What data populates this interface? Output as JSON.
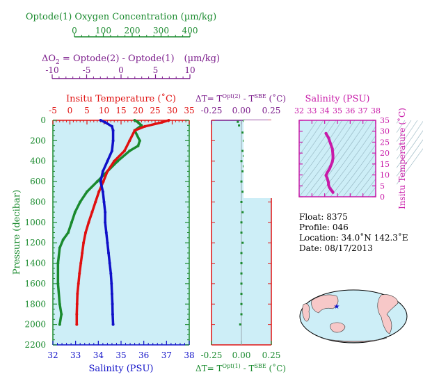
{
  "oxygen_axis": {
    "title": "Optode(1) Oxygen Concentration (µm/kg)",
    "ticks": [
      "0",
      "100",
      "200",
      "300",
      "400"
    ],
    "range": [
      0,
      400
    ]
  },
  "delta_o2_axis": {
    "title": "ΔO",
    "subscript": "2",
    "title_rest": " = Optode(2) - Optode(1)",
    "units": "(µm/kg)",
    "ticks": [
      "-10",
      "-5",
      "0",
      "5",
      "10"
    ],
    "range": [
      -10,
      10
    ]
  },
  "colors": {
    "oxygen": "#1a8a2e",
    "temperature": "#e01010",
    "salinity": "#1010c8",
    "purple": "#7a1a8a",
    "magenta": "#c81aa8",
    "panel_bg": "#cdeef7",
    "land": "#f7c8c8",
    "ocean": "#cdeef7"
  },
  "main_panel": {
    "top_title": "Insitu Temperature (˚C)",
    "top_ticks": [
      "-5",
      "0",
      "5",
      "10",
      "15",
      "20",
      "25",
      "30",
      "35"
    ],
    "y_title": "Pressure (decibar)",
    "y_ticks": [
      "0",
      "200",
      "400",
      "600",
      "800",
      "1000",
      "1200",
      "1400",
      "1600",
      "1800",
      "2000",
      "2200"
    ],
    "bottom_title": "Salinity (PSU)",
    "bottom_ticks": [
      "32",
      "33",
      "34",
      "35",
      "36",
      "37",
      "38"
    ]
  },
  "dt_panel": {
    "top_title_prefix": "ΔT= T",
    "top_sup1": "Opt(2)",
    "top_mid": " - T",
    "top_sup2": "SBE",
    "top_units": " (˚C)",
    "bottom_title_prefix": "ΔT= T",
    "bottom_sup1": "Opt(1)",
    "bottom_mid": " - T",
    "bottom_sup2": "SBE",
    "bottom_units": " (˚C)",
    "top_ticks": [
      "-0.25",
      "0.00",
      "0.25"
    ],
    "bottom_ticks": [
      "-0.25",
      "0.00",
      "0.25"
    ]
  },
  "ts_panel": {
    "top_title": "Salinity (PSU)",
    "top_ticks": [
      "32",
      "33",
      "34",
      "35",
      "36",
      "37",
      "38"
    ],
    "right_title": "Insitu Temperature (˚C)",
    "right_ticks": [
      "0",
      "5",
      "10",
      "15",
      "20",
      "25",
      "30",
      "35"
    ]
  },
  "info": {
    "float": "Float:  8375",
    "profile": "Profile:  046",
    "location": "Location:  34.0˚N  142.3˚E",
    "date": "Date:  08/17/2013"
  },
  "chart_data": [
    {
      "type": "line",
      "name": "oxygen",
      "x_axis": "Optode(1) Oxygen Concentration (µm/kg)",
      "y_axis": "Pressure (decibar)",
      "xlim": [
        0,
        400
      ],
      "ylim": [
        2200,
        0
      ],
      "points": [
        [
          240,
          0
        ],
        [
          250,
          20
        ],
        [
          260,
          50
        ],
        [
          240,
          100
        ],
        [
          255,
          200
        ],
        [
          250,
          250
        ],
        [
          225,
          300
        ],
        [
          190,
          400
        ],
        [
          160,
          500
        ],
        [
          130,
          600
        ],
        [
          100,
          700
        ],
        [
          80,
          800
        ],
        [
          65,
          900
        ],
        [
          55,
          1000
        ],
        [
          45,
          1100
        ],
        [
          30,
          1170
        ],
        [
          20,
          1250
        ],
        [
          15,
          1400
        ],
        [
          15,
          1600
        ],
        [
          20,
          1800
        ],
        [
          25,
          1900
        ],
        [
          20,
          2000
        ]
      ]
    },
    {
      "type": "line",
      "name": "temperature",
      "x_axis": "Insitu Temperature (˚C)",
      "y_axis": "Pressure (decibar)",
      "xlim": [
        -5,
        35
      ],
      "ylim": [
        2200,
        0
      ],
      "points": [
        [
          29,
          0
        ],
        [
          27,
          20
        ],
        [
          22,
          60
        ],
        [
          19,
          100
        ],
        [
          17.5,
          200
        ],
        [
          16,
          300
        ],
        [
          13,
          400
        ],
        [
          11,
          500
        ],
        [
          9.8,
          600
        ],
        [
          8.5,
          700
        ],
        [
          7.5,
          800
        ],
        [
          6.5,
          900
        ],
        [
          5.5,
          1000
        ],
        [
          4.6,
          1100
        ],
        [
          4,
          1200
        ],
        [
          3.6,
          1300
        ],
        [
          3.2,
          1400
        ],
        [
          2.8,
          1500
        ],
        [
          2.5,
          1600
        ],
        [
          2.2,
          1700
        ],
        [
          2.1,
          1800
        ],
        [
          2,
          1900
        ],
        [
          2,
          2000
        ]
      ]
    },
    {
      "type": "line",
      "name": "salinity",
      "x_axis": "Salinity (PSU)",
      "y_axis": "Pressure (decibar)",
      "xlim": [
        32,
        38
      ],
      "ylim": [
        2200,
        0
      ],
      "points": [
        [
          34.1,
          0
        ],
        [
          34.3,
          20
        ],
        [
          34.6,
          60
        ],
        [
          34.65,
          100
        ],
        [
          34.65,
          200
        ],
        [
          34.6,
          300
        ],
        [
          34.4,
          400
        ],
        [
          34.2,
          500
        ],
        [
          34.1,
          600
        ],
        [
          34.2,
          700
        ],
        [
          34.25,
          800
        ],
        [
          34.3,
          900
        ],
        [
          34.3,
          1000
        ],
        [
          34.35,
          1100
        ],
        [
          34.4,
          1200
        ],
        [
          34.45,
          1300
        ],
        [
          34.5,
          1400
        ],
        [
          34.55,
          1500
        ],
        [
          34.58,
          1600
        ],
        [
          34.6,
          1700
        ],
        [
          34.62,
          1800
        ],
        [
          34.63,
          1900
        ],
        [
          34.65,
          2000
        ]
      ]
    },
    {
      "type": "scatter",
      "name": "delta_t",
      "x_axis": "ΔT (˚C)",
      "y_axis": "Pressure (decibar)",
      "xlim": [
        -0.25,
        0.25
      ],
      "ylim": [
        2200,
        0
      ],
      "points": [
        [
          0.02,
          5
        ],
        [
          0.05,
          10
        ],
        [
          -0.03,
          15
        ],
        [
          0.1,
          20
        ],
        [
          0.04,
          30
        ],
        [
          0.12,
          40
        ],
        [
          -0.02,
          50
        ],
        [
          0.06,
          60
        ],
        [
          0.03,
          80
        ],
        [
          0.08,
          100
        ],
        [
          0.01,
          120
        ],
        [
          0.05,
          150
        ],
        [
          0.02,
          200
        ],
        [
          0.03,
          250
        ],
        [
          0.01,
          300
        ],
        [
          0.02,
          350
        ],
        [
          0.0,
          400
        ],
        [
          0.02,
          450
        ],
        [
          0.01,
          500
        ],
        [
          0.0,
          600
        ],
        [
          0.01,
          700
        ],
        [
          0.0,
          800
        ],
        [
          0.01,
          900
        ],
        [
          0.0,
          1000
        ],
        [
          0.0,
          1100
        ],
        [
          0.01,
          1200
        ],
        [
          0.0,
          1300
        ],
        [
          0.0,
          1400
        ],
        [
          0.0,
          1500
        ],
        [
          0.0,
          1600
        ],
        [
          0.0,
          1700
        ],
        [
          0.0,
          1800
        ],
        [
          0.0,
          1900
        ],
        [
          -0.01,
          2000
        ]
      ]
    },
    {
      "type": "scatter",
      "name": "ts_diagram",
      "x_axis": "Salinity (PSU)",
      "y_axis": "Insitu Temperature (˚C)",
      "xlim": [
        32,
        38
      ],
      "ylim": [
        0,
        35
      ],
      "points": [
        [
          34.1,
          29
        ],
        [
          34.3,
          27
        ],
        [
          34.6,
          22
        ],
        [
          34.65,
          19
        ],
        [
          34.65,
          17.5
        ],
        [
          34.6,
          16
        ],
        [
          34.4,
          13
        ],
        [
          34.2,
          11
        ],
        [
          34.1,
          9.8
        ],
        [
          34.2,
          8.5
        ],
        [
          34.25,
          7.5
        ],
        [
          34.3,
          6.5
        ],
        [
          34.3,
          5.5
        ],
        [
          34.35,
          4.6
        ],
        [
          34.4,
          4
        ],
        [
          34.45,
          3.6
        ],
        [
          34.5,
          3.2
        ],
        [
          34.55,
          2.8
        ],
        [
          34.6,
          2.5
        ],
        [
          34.65,
          2
        ]
      ]
    }
  ]
}
